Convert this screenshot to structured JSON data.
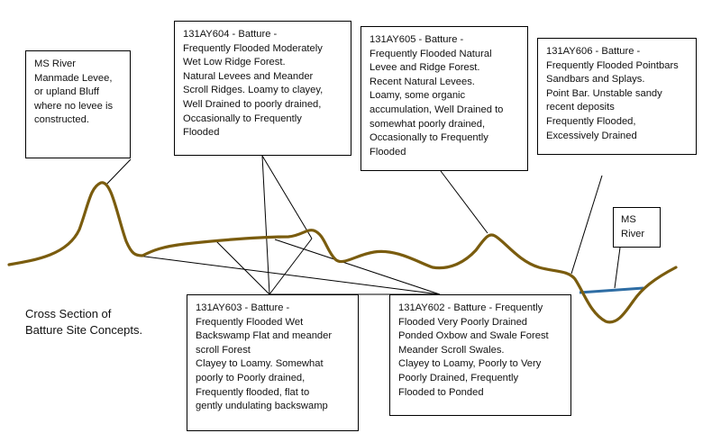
{
  "colors": {
    "terrain": "#7a5c0e",
    "water": "#2e6da4",
    "lines": "#000000"
  },
  "caption": "Cross Section of\nBatture Site Concepts.",
  "labels": {
    "levee": "MS River\nManmade Levee,\nor upland Bluff\nwhere no levee is\nconstructed.",
    "ay604": "131AY604 - Batture -\nFrequently Flooded Moderately\nWet Low Ridge Forest.\nNatural Levees and Meander\nScroll Ridges. Loamy to clayey,\nWell Drained to poorly drained,\nOccasionally to Frequently\nFlooded",
    "ay605": "131AY605 - Batture -\nFrequently Flooded Natural\nLevee and Ridge Forest.\nRecent Natural Levees.\nLoamy, some organic\naccumulation, Well Drained to\nsomewhat poorly drained,\nOccasionally to Frequently\nFlooded",
    "ay606": "131AY606 - Batture -\nFrequently Flooded Pointbars\nSandbars and Splays.\nPoint Bar. Unstable sandy\nrecent deposits\nFrequently Flooded,\nExcessively Drained",
    "river": "MS\nRiver",
    "ay603": "131AY603 - Batture -\nFrequently Flooded Wet\nBackswamp Flat and meander\nscroll Forest\nClayey to Loamy. Somewhat\npoorly to Poorly drained,\nFrequently flooded, flat to\ngently undulating backswamp",
    "ay602": "131AY602 - Batture - Frequently\nFlooded Very Poorly Drained\nPonded Oxbow and Swale Forest\nMeander Scroll Swales.\nClayey to Loamy, Poorly to Very\nPoorly Drained, Frequently\nFlooded to Ponded"
  }
}
